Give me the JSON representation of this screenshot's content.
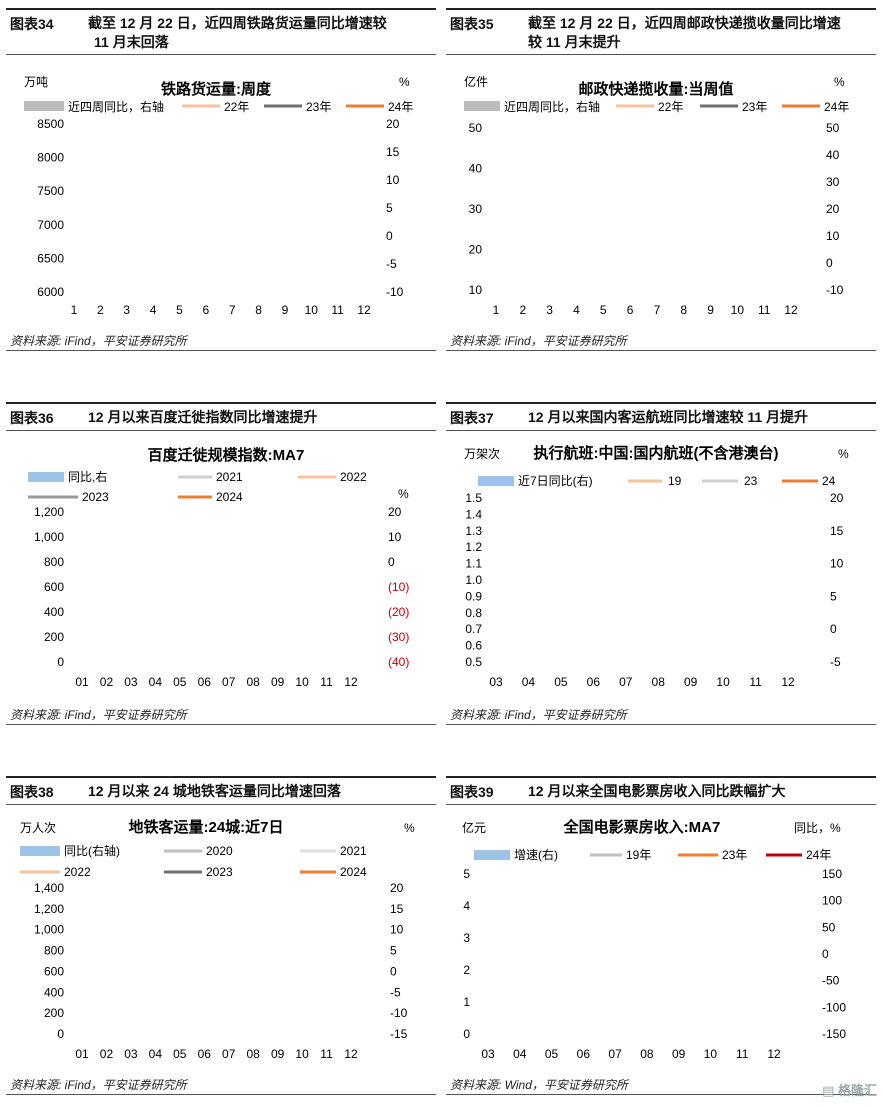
{
  "charts": [
    {
      "id": "c34",
      "fig": "图表34",
      "caption": [
        "截至 12 月 22 日，近四周铁路货运量同比增速较",
        "11 月末回落"
      ],
      "title": "铁路货运量:周度",
      "left_unit": "万吨",
      "right_unit": "%",
      "legend": [
        "近四周同比，右轴",
        "22年",
        "23年",
        "24年"
      ],
      "y_left_ticks": [
        "8500",
        "8000",
        "7500",
        "7000",
        "6500",
        "6000"
      ],
      "y_right_ticks": [
        "20",
        "15",
        "10",
        "5",
        "0",
        "-5",
        "-10"
      ],
      "x_ticks": [
        "1",
        "2",
        "3",
        "4",
        "5",
        "6",
        "7",
        "8",
        "9",
        "10",
        "11",
        "12"
      ],
      "source": "资料来源: iFind，平安证券研究所"
    },
    {
      "id": "c35",
      "fig": "图表35",
      "caption": [
        "截至 12 月 22 日，近四周邮政快递揽收量同比增速",
        "较 11 月末提升"
      ],
      "title": "邮政快递揽收量:当周值",
      "left_unit": "亿件",
      "right_unit": "%",
      "legend": [
        "近四周同比，右轴",
        "22年",
        "23年",
        "24年"
      ],
      "y_left_ticks": [
        "50",
        "40",
        "30",
        "20",
        "10"
      ],
      "y_right_ticks": [
        "50",
        "40",
        "30",
        "20",
        "10",
        "0",
        "-10"
      ],
      "x_ticks": [
        "1",
        "2",
        "3",
        "4",
        "5",
        "6",
        "7",
        "8",
        "9",
        "10",
        "11",
        "12"
      ],
      "source": "资料来源: iFind，平安证券研究所"
    },
    {
      "id": "c36",
      "fig": "图表36",
      "caption": [
        "12 月以来百度迁徙指数同比增速提升"
      ],
      "title": "百度迁徙规模指数:MA7",
      "left_unit": "",
      "right_unit": "%",
      "legend": [
        "同比,右",
        "2021",
        "2022",
        "2023",
        "2024"
      ],
      "y_left_ticks": [
        "1,200",
        "1,000",
        "800",
        "600",
        "400",
        "200",
        "0"
      ],
      "y_right_ticks": [
        "20",
        "10",
        "0",
        "(10)",
        "(20)",
        "(30)",
        "(40)"
      ],
      "x_ticks": [
        "01",
        "02",
        "03",
        "04",
        "05",
        "06",
        "07",
        "08",
        "09",
        "10",
        "11",
        "12"
      ],
      "source": "资料来源: iFind，平安证券研究所"
    },
    {
      "id": "c37",
      "fig": "图表37",
      "caption": [
        "12 月以来国内客运航班同比增速较 11 月提升"
      ],
      "title": "执行航班:中国:国内航班(不含港澳台)",
      "left_unit": "万架次",
      "right_unit": "%",
      "legend": [
        "近7日同比(右)",
        "19",
        "23",
        "24"
      ],
      "y_left_ticks": [
        "1.5",
        "1.4",
        "1.3",
        "1.2",
        "1.1",
        "1.0",
        "0.9",
        "0.8",
        "0.7",
        "0.6",
        "0.5"
      ],
      "y_right_ticks": [
        "20",
        "15",
        "10",
        "5",
        "0",
        "-5"
      ],
      "x_ticks": [
        "03",
        "04",
        "05",
        "06",
        "07",
        "08",
        "09",
        "10",
        "11",
        "12"
      ],
      "source": "资料来源: iFind，平安证券研究所"
    },
    {
      "id": "c38",
      "fig": "图表38",
      "caption": [
        "12 月以来 24 城地铁客运量同比增速回落"
      ],
      "title": "地铁客运量:24城:近7日",
      "left_unit": "万人次",
      "right_unit": "%",
      "legend": [
        "同比(右轴)",
        "2020",
        "2021",
        "2022",
        "2023",
        "2024"
      ],
      "y_left_ticks": [
        "1,400",
        "1,200",
        "1,000",
        "800",
        "600",
        "400",
        "200",
        "0"
      ],
      "y_right_ticks": [
        "20",
        "15",
        "10",
        "5",
        "0",
        "-5",
        "-10",
        "-15"
      ],
      "x_ticks": [
        "01",
        "02",
        "03",
        "04",
        "05",
        "06",
        "07",
        "08",
        "09",
        "10",
        "11",
        "12"
      ],
      "source": "资料来源: iFind，平安证券研究所"
    },
    {
      "id": "c39",
      "fig": "图表39",
      "caption": [
        "12 月以来全国电影票房收入同比跌幅扩大"
      ],
      "title": "全国电影票房收入:MA7",
      "left_unit": "亿元",
      "right_unit": "同比，%",
      "legend": [
        "增速(右)",
        "19年",
        "23年",
        "24年"
      ],
      "y_left_ticks": [
        "5",
        "4",
        "3",
        "2",
        "1",
        "0"
      ],
      "y_right_ticks": [
        "150",
        "100",
        "50",
        "0",
        "-50",
        "-100",
        "-150"
      ],
      "x_ticks": [
        "03",
        "04",
        "05",
        "06",
        "07",
        "08",
        "09",
        "10",
        "11",
        "12"
      ],
      "source": "资料来源: Wind，平安证券研究所"
    }
  ],
  "colors": {
    "grey_area": "#bdbdbd",
    "blue_bar": "#9dc3e6",
    "light_orange": "#f4c3a0",
    "orange": "#ed7d31",
    "dark_grey": "#6f6f6f",
    "light_grey": "#cfcfcf",
    "dark_red": "#c00000",
    "red_tick": "#c00000"
  },
  "watermark": "格隆汇"
}
